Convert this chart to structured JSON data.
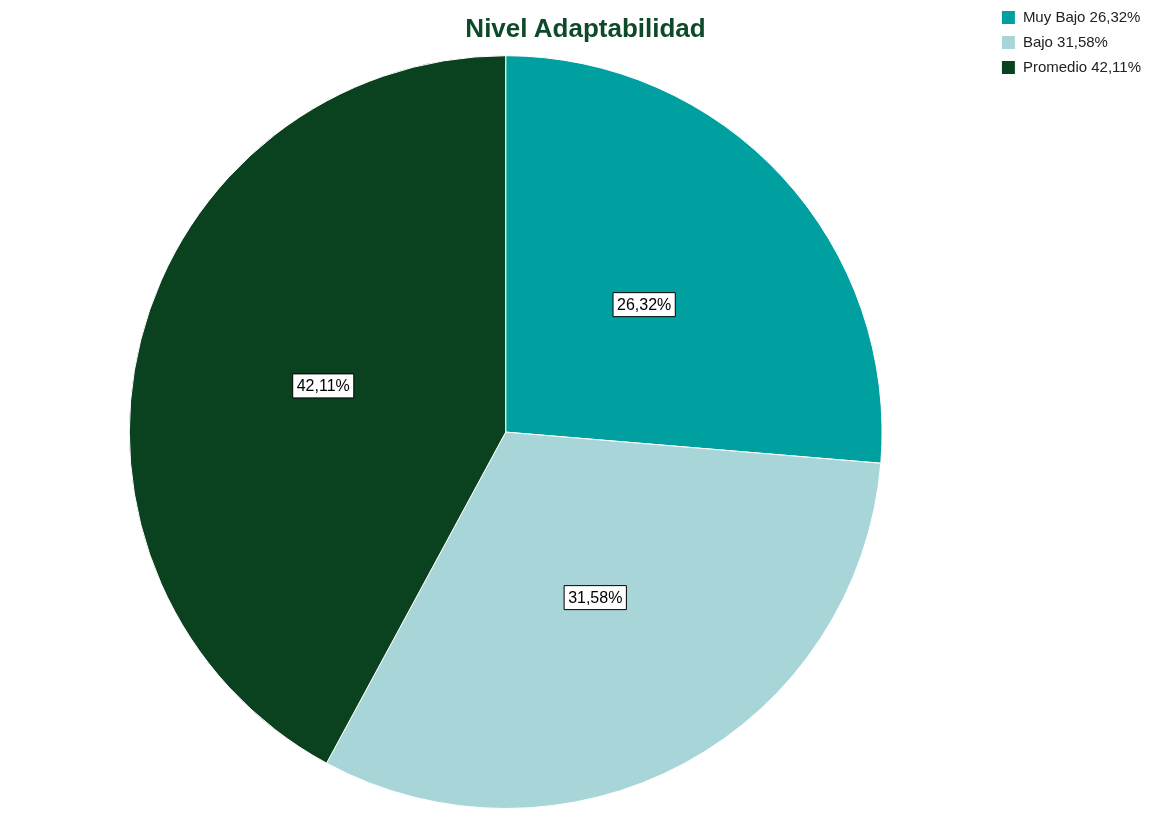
{
  "chart_data": {
    "type": "pie",
    "title": "Nivel Adaptabilidad",
    "categories": [
      "Muy Bajo 26,32%",
      "Bajo 31,58%",
      "Promedio 42,11%"
    ],
    "values": [
      26.32,
      31.58,
      42.11
    ],
    "colors": [
      "#00a0a0",
      "#a8d6d8",
      "#0a4220"
    ],
    "value_labels": [
      "26,32%",
      "31,58%",
      "42,11%"
    ],
    "legend": "top right"
  }
}
